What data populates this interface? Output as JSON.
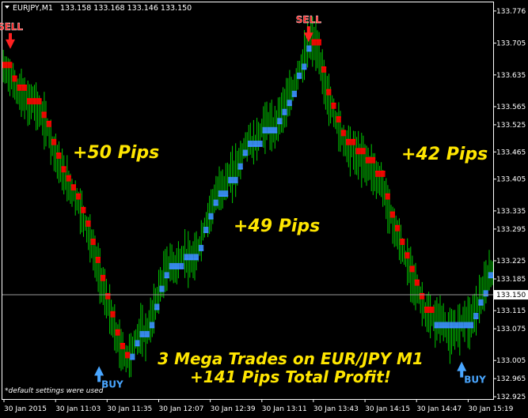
{
  "header": {
    "symbol": "EURJPY,M1",
    "ohlc": "133.158 133.168 133.146 133.150"
  },
  "current_price_label": "133.150",
  "footnote": "*default settings were used",
  "annotations": {
    "pips_1": "+50 Pips",
    "pips_2": "+49 Pips",
    "pips_3": "+42 Pips",
    "summary_1": "3 Mega Trades on EUR/JPY M1",
    "summary_2": "+141 Pips Total Profit!"
  },
  "signals": [
    {
      "label": "SELL",
      "type": "sell",
      "time": "30 Jan 2015",
      "price": 133.675
    },
    {
      "label": "BUY",
      "type": "buy",
      "time": "30 Jan 11:30",
      "price": 133.01
    },
    {
      "label": "SELL",
      "type": "sell",
      "time": "30 Jan 13:40",
      "price": 133.69
    },
    {
      "label": "BUY",
      "type": "buy",
      "time": "30 Jan 15:15",
      "price": 133.02
    }
  ],
  "colors": {
    "background": "#000000",
    "candles": "#00c800",
    "downtrend": "#ff0000",
    "uptrend": "#3c8cff",
    "annotation": "#ffe600",
    "signal_sell": "#ff2020",
    "signal_buy": "#49a6ff",
    "axis": "#ffffff"
  },
  "chart_data": {
    "type": "line",
    "title": "",
    "xlabel": "",
    "ylabel": "",
    "ylim": [
      132.92,
      133.795
    ],
    "x_tick_labels": [
      "30 Jan 2015",
      "30 Jan 11:03",
      "30 Jan 11:35",
      "30 Jan 12:07",
      "30 Jan 12:39",
      "30 Jan 13:11",
      "30 Jan 13:43",
      "30 Jan 14:15",
      "30 Jan 14:47",
      "30 Jan 15:19"
    ],
    "y_tick_labels": [
      "133.776",
      "133.705",
      "133.635",
      "133.565",
      "133.525",
      "133.465",
      "133.405",
      "133.335",
      "133.295",
      "133.225",
      "133.185",
      "133.115",
      "133.075",
      "133.005",
      "132.965",
      "132.925"
    ],
    "current_price": 133.15,
    "series": [
      {
        "values": [
          133.65,
          133.64,
          133.62,
          133.6,
          133.59,
          133.57,
          133.58,
          133.56,
          133.54,
          133.52,
          133.48,
          133.45,
          133.42,
          133.4,
          133.38,
          133.36,
          133.33,
          133.3,
          133.26,
          133.22,
          133.18,
          133.14,
          133.1,
          133.06,
          133.03,
          133.01,
          133.02,
          133.05,
          133.07,
          133.06,
          133.09,
          133.13,
          133.17,
          133.2,
          133.22,
          133.21,
          133.23,
          133.24,
          133.22,
          133.23,
          133.26,
          133.3,
          133.33,
          133.36,
          133.38,
          133.39,
          133.41,
          133.42,
          133.44,
          133.47,
          133.49,
          133.48,
          133.5,
          133.52,
          133.53,
          133.51,
          133.54,
          133.56,
          133.58,
          133.6,
          133.64,
          133.66,
          133.7,
          133.71,
          133.69,
          133.64,
          133.59,
          133.56,
          133.53,
          133.5,
          133.48,
          133.47,
          133.46,
          133.45,
          133.44,
          133.43,
          133.41,
          133.4,
          133.36,
          133.32,
          133.29,
          133.26,
          133.23,
          133.2,
          133.17,
          133.14,
          133.11,
          133.1,
          133.09,
          133.1,
          133.08,
          133.06,
          133.07,
          133.08,
          133.1,
          133.09,
          133.11,
          133.14,
          133.16,
          133.2
        ]
      }
    ]
  }
}
